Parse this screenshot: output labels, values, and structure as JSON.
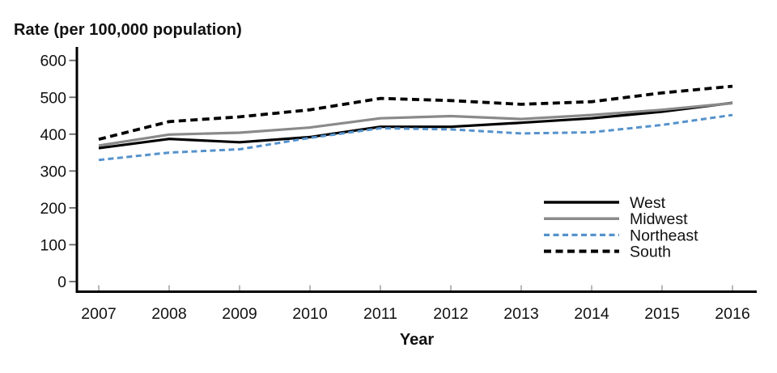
{
  "figure": {
    "background": "#ffffff",
    "text_color": "#111111"
  },
  "chart_data": {
    "type": "line",
    "title": "Rate (per 100,000 population)",
    "xlabel": "Year",
    "ylabel": "",
    "x": [
      2007,
      2008,
      2009,
      2010,
      2011,
      2012,
      2013,
      2014,
      2015,
      2016
    ],
    "ylim": [
      0,
      600
    ],
    "yticks": [
      0,
      100,
      200,
      300,
      400,
      500,
      600
    ],
    "grid": false,
    "legend_position": "inside-right",
    "series": [
      {
        "name": "West",
        "color": "#000000",
        "dash": "solid",
        "values": [
          362,
          387,
          378,
          392,
          420,
          420,
          431,
          443,
          461,
          485
        ]
      },
      {
        "name": "Midwest",
        "color": "#8a8a8a",
        "dash": "solid",
        "values": [
          369,
          399,
          404,
          418,
          443,
          449,
          441,
          452,
          466,
          484
        ]
      },
      {
        "name": "Northeast",
        "color": "#5592CC",
        "dash": "dashed",
        "values": [
          330,
          350,
          359,
          390,
          416,
          413,
          402,
          405,
          425,
          452
        ]
      },
      {
        "name": "South",
        "color": "#000000",
        "dash": "dashed",
        "values": [
          386,
          434,
          447,
          466,
          497,
          491,
          481,
          488,
          512,
          530
        ]
      }
    ]
  }
}
